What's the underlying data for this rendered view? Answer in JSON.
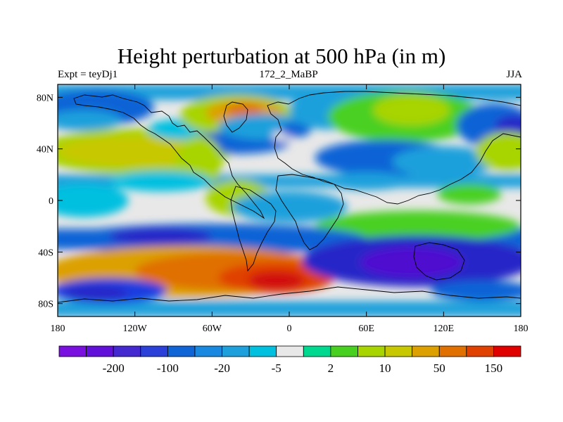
{
  "header": {
    "title": "Height perturbation at 500 hPa (in m)",
    "left": "Expt = teyDj1",
    "center": "172_2_MaBP",
    "right": "JJA"
  },
  "map": {
    "projection": "cylindrical-equidistant",
    "lon_range": [
      -180,
      180
    ],
    "lat_range": [
      -90,
      90
    ],
    "lat_ticks": [
      {
        "value": 80,
        "label": "80N"
      },
      {
        "value": 40,
        "label": "40N"
      },
      {
        "value": 0,
        "label": "0"
      },
      {
        "value": -40,
        "label": "40S"
      },
      {
        "value": -80,
        "label": "80S"
      }
    ],
    "lon_ticks": [
      {
        "value": -180,
        "label": "180"
      },
      {
        "value": -120,
        "label": "120W"
      },
      {
        "value": -60,
        "label": "60W"
      },
      {
        "value": 0,
        "label": "0"
      },
      {
        "value": 60,
        "label": "60E"
      },
      {
        "value": 120,
        "label": "120E"
      },
      {
        "value": 180,
        "label": "180"
      }
    ],
    "background_color": "#e8e8e8",
    "coastline_color": "#000000",
    "features": [
      {
        "lon": -150,
        "lat": 72,
        "rx": 45,
        "ry": 14,
        "color": "#0f64d6"
      },
      {
        "lon": -160,
        "lat": 62,
        "rx": 30,
        "ry": 8,
        "color": "#1ea0dc"
      },
      {
        "lon": -120,
        "lat": 38,
        "rx": 75,
        "ry": 18,
        "color": "#a8d400"
      },
      {
        "lon": -120,
        "lat": 38,
        "rx": 60,
        "ry": 12,
        "color": "#c8c800"
      },
      {
        "lon": -85,
        "lat": 55,
        "rx": 25,
        "ry": 8,
        "color": "#00c0e0"
      },
      {
        "lon": -40,
        "lat": 66,
        "rx": 45,
        "ry": 16,
        "color": "#a8d400"
      },
      {
        "lon": -35,
        "lat": 68,
        "rx": 30,
        "ry": 10,
        "color": "#dca000"
      },
      {
        "lon": -35,
        "lat": 70,
        "rx": 14,
        "ry": 5,
        "color": "#e07000"
      },
      {
        "lon": -40,
        "lat": 45,
        "rx": 40,
        "ry": 9,
        "color": "#0f64d6"
      },
      {
        "lon": -20,
        "lat": 57,
        "rx": 35,
        "ry": 10,
        "color": "#1ea0dc"
      },
      {
        "lon": -5,
        "lat": 50,
        "rx": 8,
        "ry": 4,
        "color": "#e8e8e8"
      },
      {
        "lon": 5,
        "lat": 55,
        "rx": 12,
        "ry": 6,
        "color": "#0f64d6"
      },
      {
        "lon": 30,
        "lat": 70,
        "rx": 30,
        "ry": 15,
        "color": "#1ea0dc"
      },
      {
        "lon": 90,
        "lat": 65,
        "rx": 60,
        "ry": 20,
        "color": "#48d020"
      },
      {
        "lon": 95,
        "lat": 70,
        "rx": 30,
        "ry": 12,
        "color": "#a8d400"
      },
      {
        "lon": 160,
        "lat": 58,
        "rx": 30,
        "ry": 17,
        "color": "#0f64d6"
      },
      {
        "lon": 175,
        "lat": 58,
        "rx": 15,
        "ry": 8,
        "color": "#2828c8"
      },
      {
        "lon": 75,
        "lat": 33,
        "rx": 55,
        "ry": 14,
        "color": "#0f64d6"
      },
      {
        "lon": 120,
        "lat": 30,
        "rx": 40,
        "ry": 12,
        "color": "#1ea0dc"
      },
      {
        "lon": 170,
        "lat": 38,
        "rx": 25,
        "ry": 15,
        "color": "#a8d400"
      },
      {
        "lon": -70,
        "lat": 30,
        "rx": 18,
        "ry": 20,
        "color": "#a8d400"
      },
      {
        "lon": -160,
        "lat": 0,
        "rx": 35,
        "ry": 13,
        "color": "#00c0e0"
      },
      {
        "lon": -100,
        "lat": 15,
        "rx": 40,
        "ry": 8,
        "color": "#00c0e0"
      },
      {
        "lon": -40,
        "lat": 2,
        "rx": 25,
        "ry": 14,
        "color": "#a8d400"
      },
      {
        "lon": 0,
        "lat": -5,
        "rx": 45,
        "ry": 12,
        "color": "#1ea0dc"
      },
      {
        "lon": 60,
        "lat": 15,
        "rx": 35,
        "ry": 7,
        "color": "#1ea0dc"
      },
      {
        "lon": 140,
        "lat": 5,
        "rx": 25,
        "ry": 8,
        "color": "#48d020"
      },
      {
        "lon": 100,
        "lat": -20,
        "rx": 80,
        "ry": 12,
        "color": "#48d020"
      },
      {
        "lon": -60,
        "lat": -30,
        "rx": 120,
        "ry": 12,
        "color": "#0f64d6"
      },
      {
        "lon": -100,
        "lat": -28,
        "rx": 40,
        "ry": 7,
        "color": "#2828c8"
      },
      {
        "lon": -80,
        "lat": -55,
        "rx": 110,
        "ry": 20,
        "color": "#dca000"
      },
      {
        "lon": -40,
        "lat": -55,
        "rx": 80,
        "ry": 15,
        "color": "#e07000"
      },
      {
        "lon": -10,
        "lat": -60,
        "rx": 45,
        "ry": 12,
        "color": "#e04000"
      },
      {
        "lon": -10,
        "lat": -62,
        "rx": 22,
        "ry": 7,
        "color": "#d01010"
      },
      {
        "lon": -140,
        "lat": -70,
        "rx": 45,
        "ry": 10,
        "color": "#1a3ce0"
      },
      {
        "lon": -150,
        "lat": -72,
        "rx": 25,
        "ry": 6,
        "color": "#2828c8"
      },
      {
        "lon": 100,
        "lat": -47,
        "rx": 90,
        "ry": 20,
        "color": "#2828c8"
      },
      {
        "lon": 95,
        "lat": -48,
        "rx": 40,
        "ry": 12,
        "color": "#5010d0"
      },
      {
        "lon": 150,
        "lat": -70,
        "rx": 40,
        "ry": 8,
        "color": "#0f64d6"
      }
    ],
    "bands": [
      {
        "lat_top": 90,
        "lat_bottom": 78,
        "color": "#1ea0dc"
      },
      {
        "lat_top": 20,
        "lat_bottom": 10,
        "color": "#1ea0dc"
      },
      {
        "lat_top": -22,
        "lat_bottom": -38,
        "color": "#0f64d6"
      },
      {
        "lat_top": -78,
        "lat_bottom": -90,
        "color": "#1ea0dc"
      }
    ]
  },
  "colorbar": {
    "colors": [
      "#7a10e0",
      "#6010d8",
      "#4428d0",
      "#2a40d8",
      "#0f64d6",
      "#1888e0",
      "#1ea0dc",
      "#00c0e0",
      "#e8e8e8",
      "#00d890",
      "#48d020",
      "#a8d400",
      "#c8c800",
      "#dca000",
      "#e07000",
      "#e04000",
      "#e00000"
    ],
    "labels": [
      {
        "after_box": 1,
        "text": "-200"
      },
      {
        "after_box": 3,
        "text": "-100"
      },
      {
        "after_box": 5,
        "text": "-20"
      },
      {
        "after_box": 7,
        "text": "-5"
      },
      {
        "after_box": 9,
        "text": "2"
      },
      {
        "after_box": 11,
        "text": "10"
      },
      {
        "after_box": 13,
        "text": "50"
      },
      {
        "after_box": 15,
        "text": "150"
      }
    ]
  }
}
